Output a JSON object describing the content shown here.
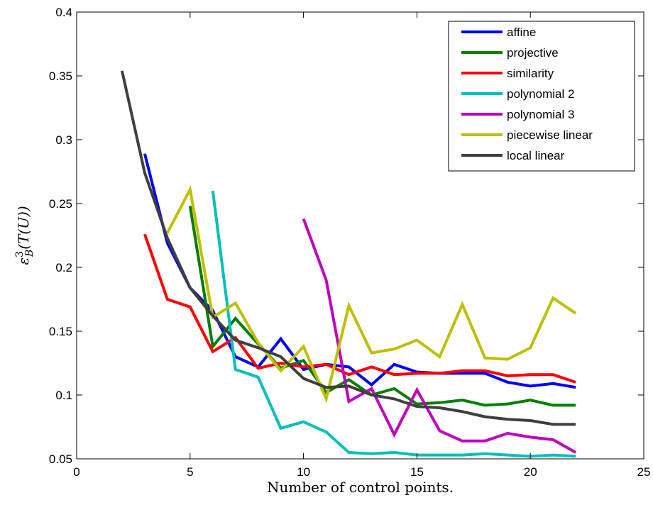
{
  "chart_data": {
    "type": "line",
    "title": "",
    "xlabel": "Number of control points.",
    "ylabel": "ε_B^3(T(U))",
    "xlim": [
      0,
      25
    ],
    "ylim": [
      0.05,
      0.4
    ],
    "xticks": [
      0,
      5,
      10,
      15,
      20,
      25
    ],
    "yticks": [
      0.05,
      0.1,
      0.15,
      0.2,
      0.25,
      0.3,
      0.35,
      0.4
    ],
    "xtick_labels": [
      "0",
      "5",
      "10",
      "15",
      "20",
      "25"
    ],
    "ytick_labels": [
      "0.05",
      "0.1",
      "0.15",
      "0.2",
      "0.25",
      "0.3",
      "0.35",
      "0.4"
    ],
    "grid": false,
    "legend_position": "top-right",
    "series": [
      {
        "name": "affine",
        "color": "#0000ff",
        "x": [
          3,
          4,
          5,
          6,
          7,
          8,
          9,
          10,
          11,
          12,
          13,
          14,
          15,
          16,
          17,
          18,
          19,
          20,
          21,
          22
        ],
        "y": [
          0.289,
          0.219,
          0.184,
          0.166,
          0.13,
          0.122,
          0.144,
          0.12,
          0.124,
          0.122,
          0.108,
          0.124,
          0.118,
          0.117,
          0.117,
          0.117,
          0.11,
          0.107,
          0.109,
          0.106
        ]
      },
      {
        "name": "projective",
        "color": "#007f00",
        "x": [
          5,
          6,
          7,
          8,
          9,
          10,
          11,
          12,
          13,
          14,
          15,
          16,
          17,
          18,
          19,
          20,
          21,
          22
        ],
        "y": [
          0.248,
          0.138,
          0.16,
          0.14,
          0.121,
          0.127,
          0.102,
          0.112,
          0.1,
          0.105,
          0.093,
          0.094,
          0.096,
          0.092,
          0.093,
          0.096,
          0.092,
          0.092
        ]
      },
      {
        "name": "similarity",
        "color": "#ff0000",
        "x": [
          3,
          4,
          5,
          6,
          7,
          8,
          9,
          10,
          11,
          12,
          13,
          14,
          15,
          16,
          17,
          18,
          19,
          20,
          21,
          22
        ],
        "y": [
          0.226,
          0.175,
          0.169,
          0.134,
          0.145,
          0.121,
          0.125,
          0.122,
          0.124,
          0.116,
          0.122,
          0.116,
          0.117,
          0.117,
          0.119,
          0.119,
          0.115,
          0.116,
          0.116,
          0.11
        ]
      },
      {
        "name": "polynomial 2",
        "color": "#00bfbf",
        "x": [
          6,
          7,
          8,
          9,
          10,
          11,
          12,
          13,
          14,
          15,
          16,
          17,
          18,
          19,
          20,
          21,
          22
        ],
        "y": [
          0.26,
          0.12,
          0.114,
          0.074,
          0.079,
          0.071,
          0.055,
          0.054,
          0.055,
          0.053,
          0.053,
          0.053,
          0.054,
          0.053,
          0.052,
          0.053,
          0.052
        ]
      },
      {
        "name": "polynomial 3",
        "color": "#bf00bf",
        "x": [
          10,
          11,
          12,
          13,
          14,
          15,
          16,
          17,
          18,
          19,
          20,
          21,
          22
        ],
        "y": [
          0.238,
          0.19,
          0.095,
          0.105,
          0.069,
          0.104,
          0.072,
          0.064,
          0.064,
          0.07,
          0.067,
          0.065,
          0.055
        ]
      },
      {
        "name": "piecewise linear",
        "color": "#bfbf00",
        "x": [
          4,
          5,
          6,
          7,
          8,
          9,
          10,
          11,
          12,
          13,
          14,
          15,
          16,
          17,
          18,
          19,
          20,
          21,
          22
        ],
        "y": [
          0.227,
          0.261,
          0.161,
          0.172,
          0.141,
          0.119,
          0.138,
          0.097,
          0.17,
          0.133,
          0.136,
          0.143,
          0.13,
          0.171,
          0.129,
          0.128,
          0.137,
          0.176,
          0.164
        ]
      },
      {
        "name": "local linear",
        "color": "#3f3f3f",
        "x": [
          2,
          3,
          4,
          5,
          6,
          7,
          8,
          9,
          10,
          11,
          12,
          13,
          14,
          15,
          16,
          17,
          18,
          19,
          20,
          21,
          22
        ],
        "y": [
          0.354,
          0.274,
          0.223,
          0.184,
          0.162,
          0.143,
          0.137,
          0.13,
          0.113,
          0.106,
          0.107,
          0.1,
          0.097,
          0.091,
          0.09,
          0.087,
          0.083,
          0.081,
          0.08,
          0.077,
          0.077
        ]
      }
    ]
  }
}
